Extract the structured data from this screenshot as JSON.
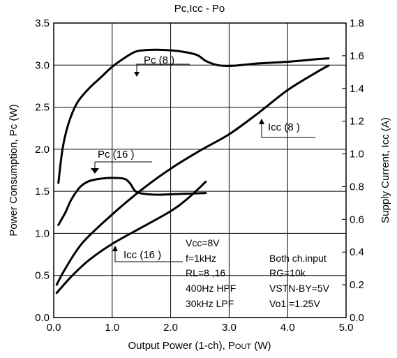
{
  "chart_data": {
    "type": "line",
    "title": "Pc,Icc - Po",
    "xlabel": "Output Power (1-ch), POUT (W)",
    "ylabel_left": "Power Consumption, Pc (W)",
    "ylabel_right": "Supply Current, Icc (A)",
    "xlim": [
      0.0,
      5.0
    ],
    "ylim_left": [
      0.0,
      3.5
    ],
    "ylim_right": [
      0.0,
      1.8
    ],
    "x_ticks": [
      "0.0",
      "1.0",
      "2.0",
      "3.0",
      "4.0",
      "5.0"
    ],
    "y_ticks_left": [
      "0.0",
      "0.5",
      "1.0",
      "1.5",
      "2.0",
      "2.5",
      "3.0",
      "3.5"
    ],
    "y_ticks_right": [
      "0.0",
      "0.2",
      "0.4",
      "0.6",
      "0.8",
      "1.0",
      "1.2",
      "1.4",
      "1.6",
      "1.8"
    ],
    "grid": true,
    "series": [
      {
        "name": "Pc (8 )",
        "axis": "left",
        "points": [
          [
            0.08,
            1.6
          ],
          [
            0.15,
            2.0
          ],
          [
            0.25,
            2.3
          ],
          [
            0.4,
            2.55
          ],
          [
            0.6,
            2.72
          ],
          [
            0.8,
            2.85
          ],
          [
            1.0,
            2.98
          ],
          [
            1.2,
            3.08
          ],
          [
            1.4,
            3.16
          ],
          [
            1.6,
            3.18
          ],
          [
            1.9,
            3.18
          ],
          [
            2.2,
            3.16
          ],
          [
            2.45,
            3.12
          ],
          [
            2.6,
            3.05
          ],
          [
            2.8,
            3.0
          ],
          [
            3.0,
            2.99
          ],
          [
            3.2,
            3.0
          ],
          [
            3.5,
            3.02
          ],
          [
            4.0,
            3.04
          ],
          [
            4.5,
            3.07
          ],
          [
            4.7,
            3.08
          ]
        ]
      },
      {
        "name": "Pc (16 )",
        "axis": "left",
        "points": [
          [
            0.08,
            1.1
          ],
          [
            0.2,
            1.25
          ],
          [
            0.3,
            1.4
          ],
          [
            0.45,
            1.55
          ],
          [
            0.6,
            1.62
          ],
          [
            0.8,
            1.65
          ],
          [
            1.0,
            1.66
          ],
          [
            1.2,
            1.65
          ],
          [
            1.3,
            1.6
          ],
          [
            1.4,
            1.5
          ],
          [
            1.55,
            1.47
          ],
          [
            1.8,
            1.46
          ],
          [
            2.2,
            1.47
          ],
          [
            2.6,
            1.48
          ]
        ]
      },
      {
        "name": "Icc (8 )",
        "axis": "right",
        "points": [
          [
            0.05,
            0.2
          ],
          [
            0.2,
            0.3
          ],
          [
            0.5,
            0.46
          ],
          [
            1.0,
            0.63
          ],
          [
            1.5,
            0.78
          ],
          [
            2.0,
            0.91
          ],
          [
            2.5,
            1.02
          ],
          [
            3.0,
            1.12
          ],
          [
            3.5,
            1.25
          ],
          [
            4.0,
            1.39
          ],
          [
            4.5,
            1.5
          ],
          [
            4.7,
            1.54
          ]
        ]
      },
      {
        "name": "Icc (16 )",
        "axis": "right",
        "points": [
          [
            0.05,
            0.15
          ],
          [
            0.3,
            0.25
          ],
          [
            0.6,
            0.35
          ],
          [
            1.0,
            0.45
          ],
          [
            1.5,
            0.55
          ],
          [
            2.0,
            0.65
          ],
          [
            2.3,
            0.73
          ],
          [
            2.6,
            0.83
          ]
        ]
      }
    ],
    "annotations": {
      "conditions_left": [
        "Vcc=8V",
        "f=1kHz",
        "RL=8 ,16",
        "400Hz HPF",
        "30kHz LPF"
      ],
      "conditions_right": [
        "Both ch.input",
        "RG=10k",
        "VSTN-BY=5V",
        "Vo1.=1.25V"
      ]
    }
  }
}
